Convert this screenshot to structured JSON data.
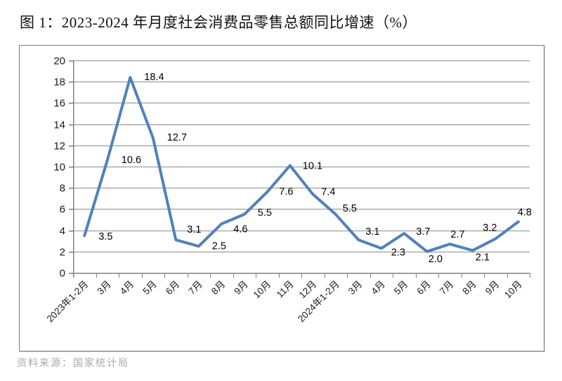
{
  "page": {
    "title": "图 1：2023-2024 年月度社会消费品零售总额同比增速（%）",
    "source": "资料来源：国家统计局"
  },
  "chart_data": {
    "type": "line",
    "title": "图 1：2023-2024 年月度社会消费品零售总额同比增速（%）",
    "categories": [
      "2023年1-2月",
      "3月",
      "4月",
      "5月",
      "6月",
      "7月",
      "8月",
      "9月",
      "10月",
      "11月",
      "12月",
      "2024年1-2月",
      "3月",
      "4月",
      "5月",
      "6月",
      "7月",
      "8月",
      "9月",
      "10月"
    ],
    "values": [
      3.5,
      10.6,
      18.4,
      12.7,
      3.1,
      2.5,
      4.6,
      5.5,
      7.6,
      10.1,
      7.4,
      5.5,
      3.1,
      2.3,
      3.7,
      2.0,
      2.7,
      2.1,
      3.2,
      4.8
    ],
    "value_labels": [
      "3.5",
      "10.6",
      "18.4",
      "12.7",
      "3.1",
      "2.5",
      "4.6",
      "5.5",
      "7.6",
      "10.1",
      "7.4",
      "5.5",
      "3.1",
      "2.3",
      "3.7",
      "2.0",
      "2.7",
      "2.1",
      "3.2",
      "4.8"
    ],
    "xlabel": "",
    "ylabel": "",
    "ylim": [
      0,
      20
    ],
    "yticks": [
      "0",
      "2",
      "4",
      "6",
      "8",
      "10",
      "12",
      "14",
      "16",
      "18",
      "20"
    ],
    "grid": true,
    "legend_position": "none",
    "source": "资料来源：国家统计局"
  },
  "colors": {
    "line": "#4F81BD",
    "grid": "#8c8c8c",
    "axis": "#808080",
    "tick_label": "#1a1a1a",
    "data_label": "#000000",
    "title_text": "#111111",
    "source_text": "#a9a9a9",
    "border": "#7f7f7f"
  }
}
